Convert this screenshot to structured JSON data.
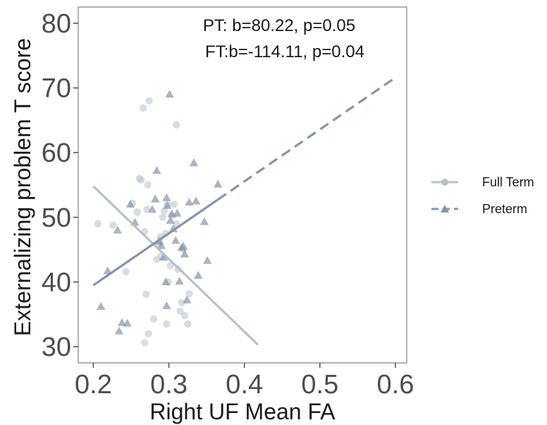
{
  "chart_data": {
    "type": "scatter",
    "xlabel": "Right UF Mean FA",
    "ylabel": "Externalizing problem T score",
    "xlim": [
      0.18,
      0.615
    ],
    "ylim": [
      27.5,
      82.5
    ],
    "xticks": [
      "0.2",
      "0.3",
      "0.4",
      "0.5",
      "0.6"
    ],
    "yticks": [
      "30",
      "40",
      "50",
      "60",
      "70",
      "80"
    ],
    "annotations": [
      "PT: b=80.22, p=0.05",
      "FT:b=-114.11, p=0.04"
    ],
    "legend_position": "right",
    "grid": false,
    "series": [
      {
        "name": "Full Term",
        "marker": "circle",
        "line_style": "solid",
        "color": "#b7c1cb",
        "fit_line": {
          "x": [
            0.2,
            0.418
          ],
          "y": [
            54.8,
            30.3
          ]
        },
        "points": [
          [
            0.206,
            49.0
          ],
          [
            0.226,
            48.8
          ],
          [
            0.243,
            41.6
          ],
          [
            0.252,
            52.2
          ],
          [
            0.258,
            50.8
          ],
          [
            0.261,
            56.0
          ],
          [
            0.263,
            55.8
          ],
          [
            0.266,
            66.9
          ],
          [
            0.268,
            47.8
          ],
          [
            0.271,
            51.2
          ],
          [
            0.27,
            38.1
          ],
          [
            0.272,
            55.0
          ],
          [
            0.273,
            32.0
          ],
          [
            0.274,
            68.0
          ],
          [
            0.268,
            30.6
          ],
          [
            0.28,
            34.3
          ],
          [
            0.284,
            43.5
          ],
          [
            0.288,
            46.0
          ],
          [
            0.29,
            44.0
          ],
          [
            0.292,
            50.0
          ],
          [
            0.294,
            51.0
          ],
          [
            0.296,
            47.5
          ],
          [
            0.297,
            33.5
          ],
          [
            0.299,
            40.0
          ],
          [
            0.302,
            42.5
          ],
          [
            0.304,
            50.3
          ],
          [
            0.307,
            52.0
          ],
          [
            0.31,
            64.3
          ],
          [
            0.312,
            42.0
          ],
          [
            0.315,
            35.5
          ],
          [
            0.317,
            36.8
          ],
          [
            0.319,
            45.0
          ],
          [
            0.321,
            34.8
          ],
          [
            0.325,
            33.5
          ],
          [
            0.327,
            38.2
          ],
          [
            0.298,
            52.0
          ],
          [
            0.289,
            47.0
          ],
          [
            0.31,
            49.0
          ]
        ]
      },
      {
        "name": "Preterm",
        "marker": "triangle",
        "line_style": "dashed",
        "color": "#8794a8",
        "fit_line": {
          "x": [
            0.2,
            0.6
          ],
          "y": [
            39.5,
            71.6
          ]
        },
        "fit_solid_until_x": 0.365,
        "points": [
          [
            0.21,
            36.2
          ],
          [
            0.219,
            41.7
          ],
          [
            0.232,
            48.0
          ],
          [
            0.234,
            32.4
          ],
          [
            0.238,
            33.7
          ],
          [
            0.245,
            33.6
          ],
          [
            0.249,
            52.0
          ],
          [
            0.255,
            49.2
          ],
          [
            0.278,
            51.2
          ],
          [
            0.282,
            52.8
          ],
          [
            0.284,
            57.2
          ],
          [
            0.287,
            46.3
          ],
          [
            0.29,
            45.6
          ],
          [
            0.293,
            43.8
          ],
          [
            0.296,
            40.0
          ],
          [
            0.297,
            53.0
          ],
          [
            0.298,
            51.8
          ],
          [
            0.301,
            69.0
          ],
          [
            0.302,
            49.5
          ],
          [
            0.304,
            50.5
          ],
          [
            0.306,
            48.2
          ],
          [
            0.309,
            46.4
          ],
          [
            0.311,
            50.6
          ],
          [
            0.314,
            40.1
          ],
          [
            0.317,
            45.3
          ],
          [
            0.319,
            45.5
          ],
          [
            0.321,
            44.3
          ],
          [
            0.324,
            37.2
          ],
          [
            0.327,
            52.3
          ],
          [
            0.333,
            58.4
          ],
          [
            0.336,
            52.5
          ],
          [
            0.339,
            41.0
          ],
          [
            0.347,
            49.3
          ],
          [
            0.351,
            43.3
          ],
          [
            0.365,
            55.1
          ],
          [
            0.297,
            36.3
          ]
        ]
      }
    ]
  }
}
